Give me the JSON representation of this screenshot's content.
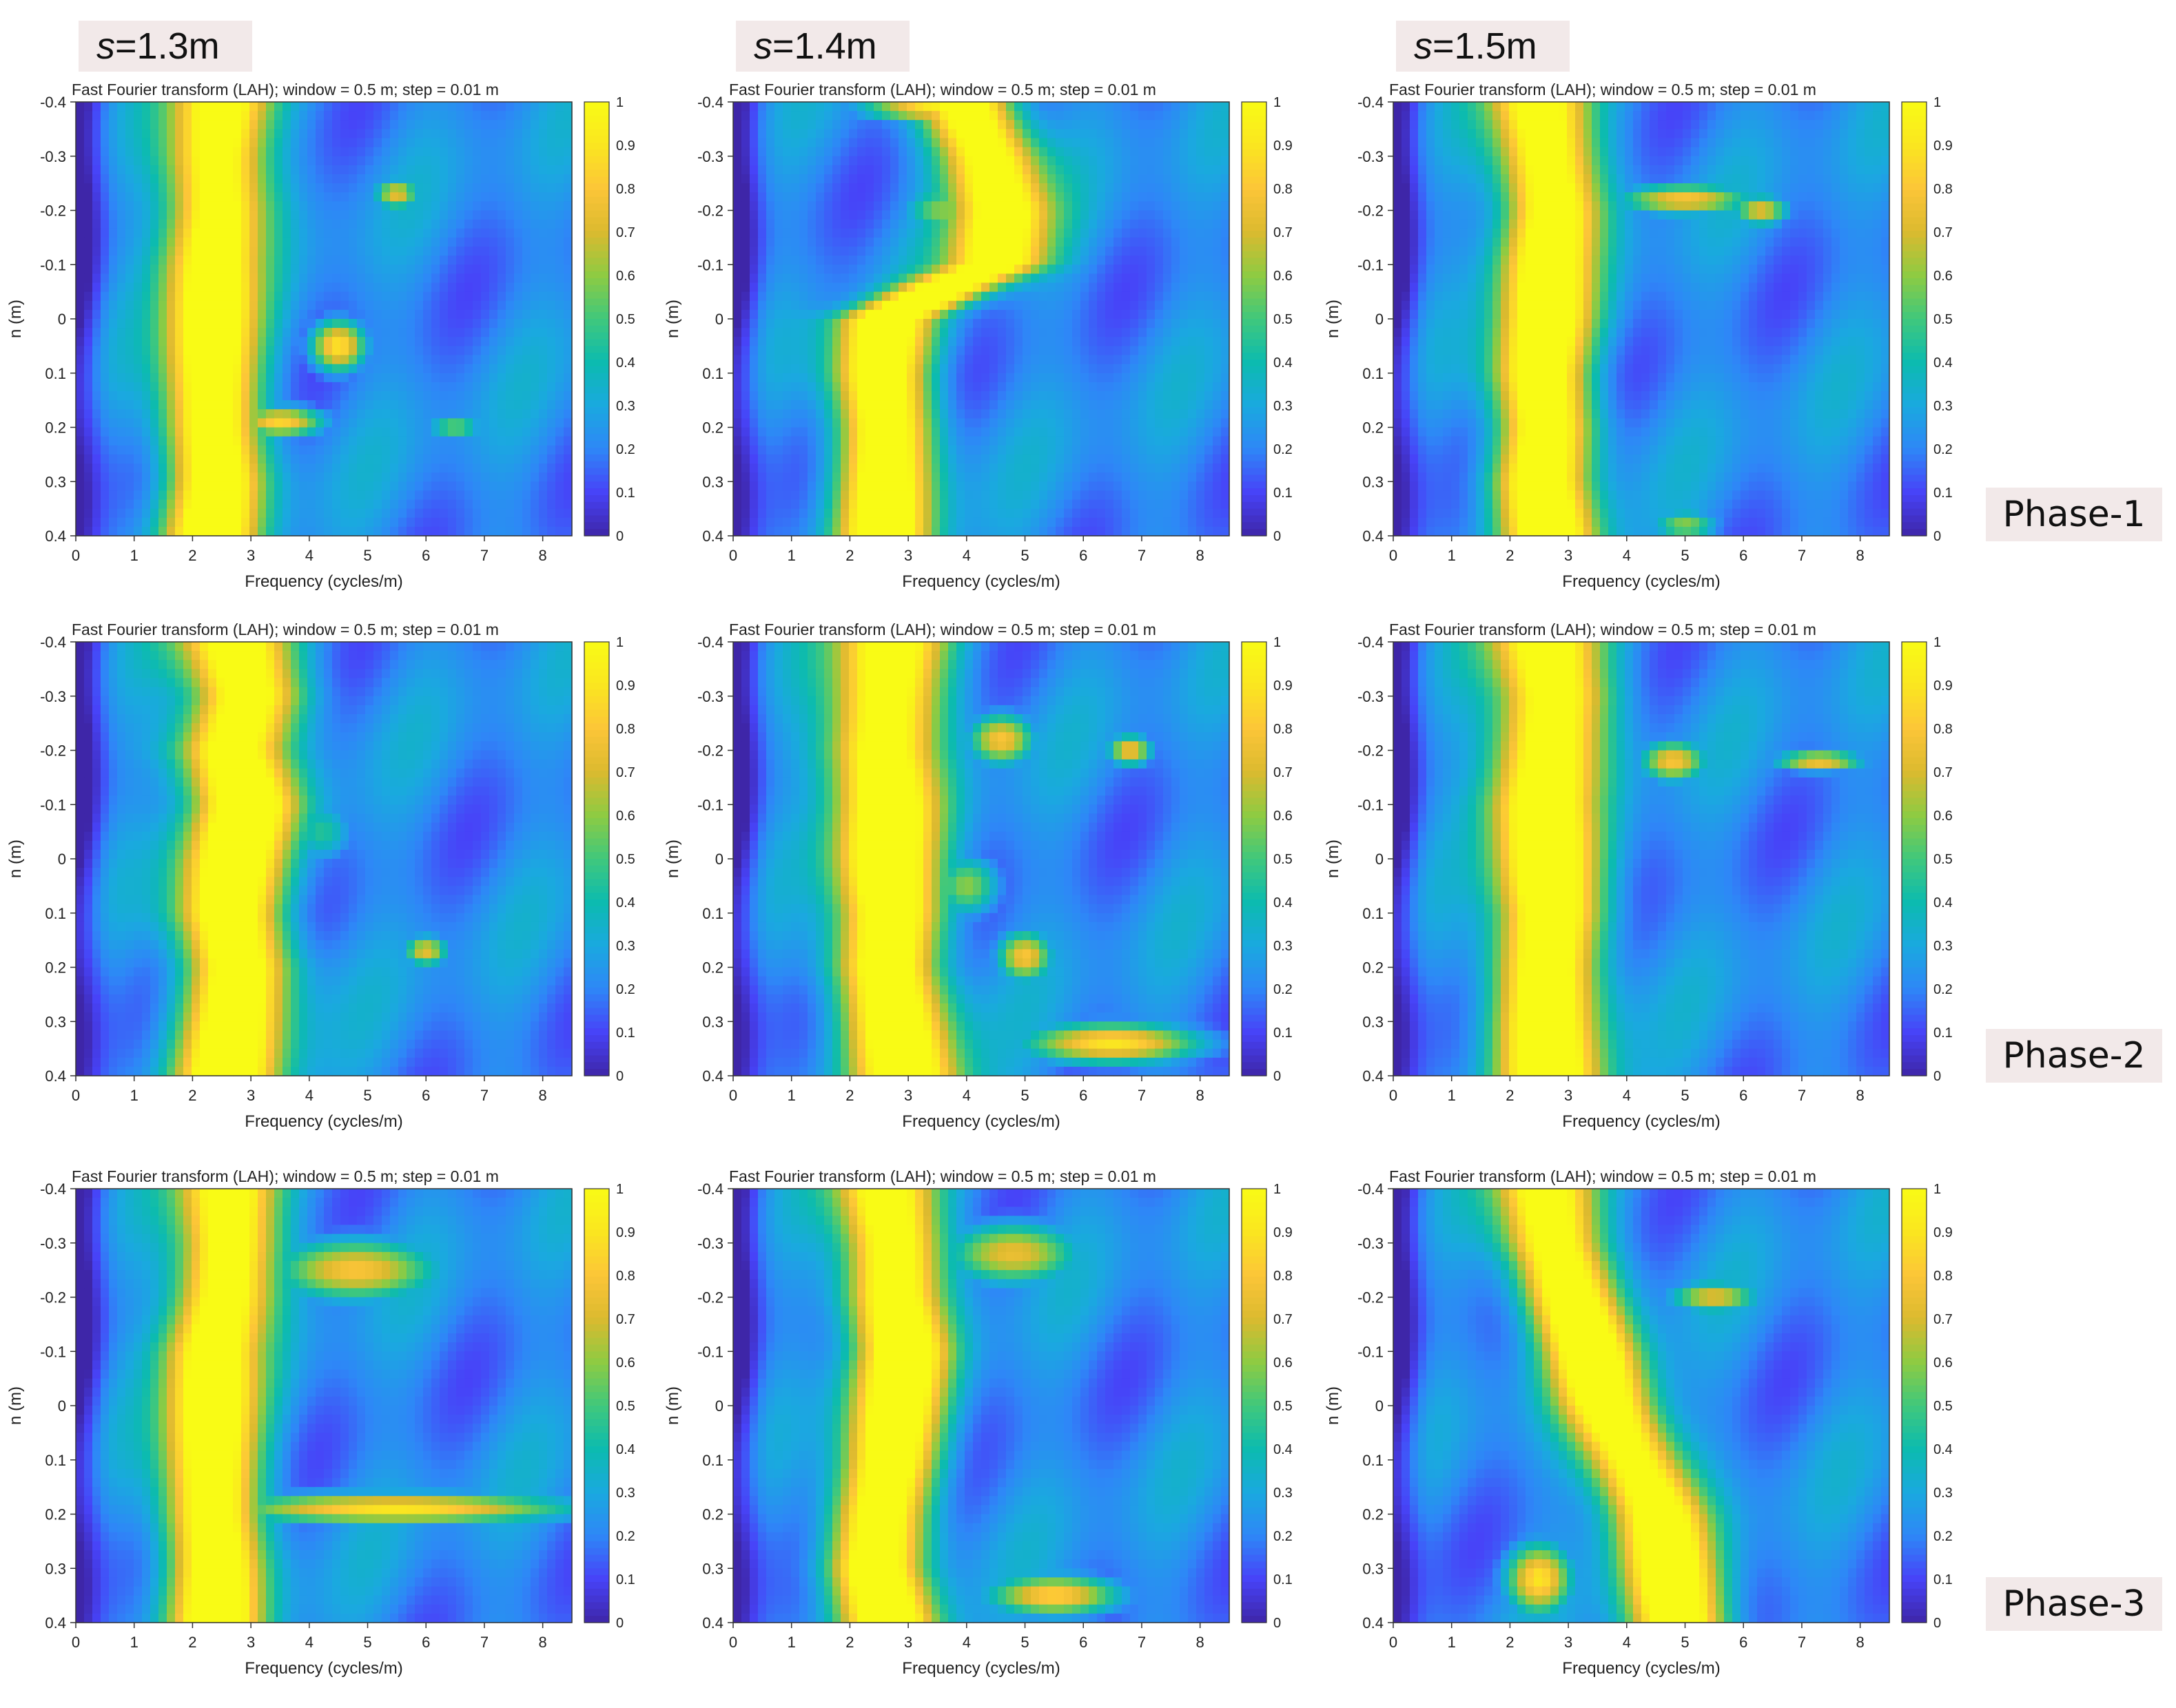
{
  "figure": {
    "columns": [
      {
        "prefix": "s",
        "suffix": "=1.3m"
      },
      {
        "prefix": "s",
        "suffix": "=1.4m"
      },
      {
        "prefix": "s",
        "suffix": "=1.5m"
      }
    ],
    "rows": [
      "Phase-1",
      "Phase-2",
      "Phase-3"
    ]
  },
  "chart_data": {
    "type": "heatmap",
    "title": "Fast Fourier transform (LAH); window = 0.5 m; step = 0.01 m",
    "xlabel": "Frequency (cycles/m)",
    "ylabel": "n (m)",
    "xlim": [
      0,
      8.5
    ],
    "ylim": [
      -0.4,
      0.4
    ],
    "x_ticks": [
      0,
      1,
      2,
      3,
      4,
      5,
      6,
      7,
      8
    ],
    "y_ticks": [
      -0.4,
      -0.3,
      -0.2,
      -0.1,
      0,
      0.1,
      0.2,
      0.3,
      0.4
    ],
    "y_tick_labels": [
      "-0.4",
      "-0.3",
      "-0.2",
      "-0.1",
      "0",
      "0.1",
      "0.2",
      "0.3",
      "0.4"
    ],
    "colorbar": {
      "range": [
        0,
        1
      ],
      "ticks": [
        0,
        0.1,
        0.2,
        0.3,
        0.4,
        0.5,
        0.6,
        0.7,
        0.8,
        0.9,
        1
      ],
      "tick_labels": [
        "0",
        "0.1",
        "0.2",
        "0.3",
        "0.4",
        "0.5",
        "0.6",
        "0.7",
        "0.8",
        "0.9",
        "1"
      ],
      "colormap": [
        "#3e26a8",
        "#4743f8",
        "#2e87f7",
        "#1aa9df",
        "#0cbbaf",
        "#40c87c",
        "#8ecb42",
        "#dbba2f",
        "#fcc538",
        "#fae620",
        "#f9fb15"
      ]
    },
    "panels": [
      {
        "row": "Phase-1",
        "column": "s=1.3m",
        "band": [
          [
            -0.4,
            2.5
          ],
          [
            -0.3,
            2.4
          ],
          [
            -0.2,
            2.4
          ],
          [
            -0.1,
            2.3
          ],
          [
            0,
            2.3
          ],
          [
            0.1,
            2.3
          ],
          [
            0.2,
            2.3
          ],
          [
            0.3,
            2.4
          ],
          [
            0.4,
            2.3
          ]
        ],
        "band_width": 0.8,
        "hotspots": [
          [
            4.5,
            0.05,
            0.5,
            0.05,
            0.9
          ],
          [
            5.5,
            -0.23,
            0.4,
            0.03,
            0.75
          ],
          [
            3.5,
            0.19,
            0.8,
            0.03,
            0.85
          ],
          [
            6.5,
            0.2,
            0.5,
            0.02,
            0.6
          ]
        ]
      },
      {
        "row": "Phase-1",
        "column": "s=1.4m",
        "band": [
          [
            -0.4,
            4.0
          ],
          [
            -0.3,
            4.4
          ],
          [
            -0.2,
            4.6
          ],
          [
            -0.1,
            4.5
          ],
          [
            0,
            2.6
          ],
          [
            0.1,
            2.5
          ],
          [
            0.2,
            2.6
          ],
          [
            0.3,
            2.6
          ],
          [
            0.4,
            2.6
          ]
        ],
        "band_width": 0.8,
        "hotspots": [
          [
            3.6,
            -0.39,
            1.4,
            0.03,
            0.95
          ],
          [
            3.6,
            -0.2,
            0.7,
            0.05,
            0.6
          ]
        ]
      },
      {
        "row": "Phase-1",
        "column": "s=1.5m",
        "band": [
          [
            -0.4,
            2.5
          ],
          [
            -0.3,
            2.6
          ],
          [
            -0.2,
            2.7
          ],
          [
            -0.1,
            2.6
          ],
          [
            0,
            2.6
          ],
          [
            0.1,
            2.5
          ],
          [
            0.2,
            2.6
          ],
          [
            0.3,
            2.5
          ],
          [
            0.4,
            2.7
          ]
        ],
        "band_width": 0.8,
        "hotspots": [
          [
            5.0,
            -0.22,
            1.2,
            0.03,
            0.8
          ],
          [
            6.3,
            -0.2,
            0.5,
            0.03,
            0.75
          ],
          [
            5.0,
            0.38,
            0.6,
            0.03,
            0.6
          ]
        ]
      },
      {
        "row": "Phase-2",
        "column": "s=1.3m",
        "band": [
          [
            -0.4,
            2.7
          ],
          [
            -0.3,
            2.9
          ],
          [
            -0.2,
            2.6
          ],
          [
            -0.1,
            2.9
          ],
          [
            0,
            2.7
          ],
          [
            0.1,
            2.6
          ],
          [
            0.2,
            2.8
          ],
          [
            0.3,
            2.7
          ],
          [
            0.4,
            2.6
          ]
        ],
        "band_width": 0.9,
        "hotspots": [
          [
            6.0,
            0.17,
            0.4,
            0.03,
            0.75
          ],
          [
            4.2,
            -0.05,
            0.6,
            0.06,
            0.45
          ]
        ]
      },
      {
        "row": "Phase-2",
        "column": "s=1.4m",
        "band": [
          [
            -0.4,
            2.7
          ],
          [
            -0.3,
            2.6
          ],
          [
            -0.2,
            2.5
          ],
          [
            -0.1,
            2.6
          ],
          [
            0,
            2.6
          ],
          [
            0.1,
            2.7
          ],
          [
            0.2,
            2.6
          ],
          [
            0.3,
            2.8
          ],
          [
            0.4,
            3.0
          ]
        ],
        "band_width": 0.9,
        "hotspots": [
          [
            4.6,
            -0.22,
            0.6,
            0.05,
            0.8
          ],
          [
            6.8,
            -0.2,
            0.4,
            0.03,
            0.8
          ],
          [
            5.0,
            0.18,
            0.5,
            0.05,
            0.8
          ],
          [
            6.5,
            0.34,
            1.6,
            0.04,
            0.9
          ],
          [
            4.0,
            0.05,
            0.6,
            0.06,
            0.6
          ]
        ]
      },
      {
        "row": "Phase-2",
        "column": "s=1.5m",
        "band": [
          [
            -0.4,
            2.6
          ],
          [
            -0.3,
            2.7
          ],
          [
            -0.2,
            2.6
          ],
          [
            -0.1,
            2.5
          ],
          [
            0,
            2.6
          ],
          [
            0.1,
            2.7
          ],
          [
            0.2,
            2.6
          ],
          [
            0.3,
            2.6
          ],
          [
            0.4,
            2.7
          ]
        ],
        "band_width": 0.9,
        "hotspots": [
          [
            4.8,
            -0.18,
            0.6,
            0.04,
            0.8
          ],
          [
            7.3,
            -0.18,
            0.8,
            0.02,
            0.8
          ]
        ]
      },
      {
        "row": "Phase-3",
        "column": "s=1.3m",
        "band": [
          [
            -0.4,
            2.6
          ],
          [
            -0.3,
            2.6
          ],
          [
            -0.2,
            2.5
          ],
          [
            -0.1,
            2.3
          ],
          [
            0,
            2.3
          ],
          [
            0.1,
            2.3
          ],
          [
            0.2,
            2.3
          ],
          [
            0.3,
            2.4
          ],
          [
            0.4,
            2.4
          ]
        ],
        "band_width": 0.8,
        "hotspots": [
          [
            5.5,
            0.19,
            3.2,
            0.03,
            0.9
          ],
          [
            4.8,
            -0.25,
            1.5,
            0.06,
            0.8
          ]
        ]
      },
      {
        "row": "Phase-3",
        "column": "s=1.4m",
        "band": [
          [
            -0.4,
            2.6
          ],
          [
            -0.3,
            2.7
          ],
          [
            -0.2,
            2.7
          ],
          [
            -0.1,
            2.9
          ],
          [
            0,
            2.8
          ],
          [
            0.1,
            2.7
          ],
          [
            0.2,
            2.5
          ],
          [
            0.3,
            2.4
          ],
          [
            0.4,
            2.7
          ]
        ],
        "band_width": 0.8,
        "hotspots": [
          [
            5.5,
            0.35,
            1.2,
            0.04,
            0.85
          ],
          [
            4.8,
            -0.28,
            1.2,
            0.06,
            0.75
          ]
        ]
      },
      {
        "row": "Phase-3",
        "column": "s=1.5m",
        "band": [
          [
            -0.4,
            2.6
          ],
          [
            -0.3,
            2.7
          ],
          [
            -0.2,
            3.0
          ],
          [
            -0.1,
            3.4
          ],
          [
            0,
            3.7
          ],
          [
            0.1,
            4.1
          ],
          [
            0.2,
            4.5
          ],
          [
            0.3,
            4.7
          ],
          [
            0.4,
            4.9
          ]
        ],
        "band_width": 0.8,
        "hotspots": [
          [
            2.5,
            0.32,
            0.6,
            0.07,
            0.9
          ],
          [
            5.5,
            -0.2,
            0.8,
            0.03,
            0.75
          ]
        ]
      }
    ]
  }
}
